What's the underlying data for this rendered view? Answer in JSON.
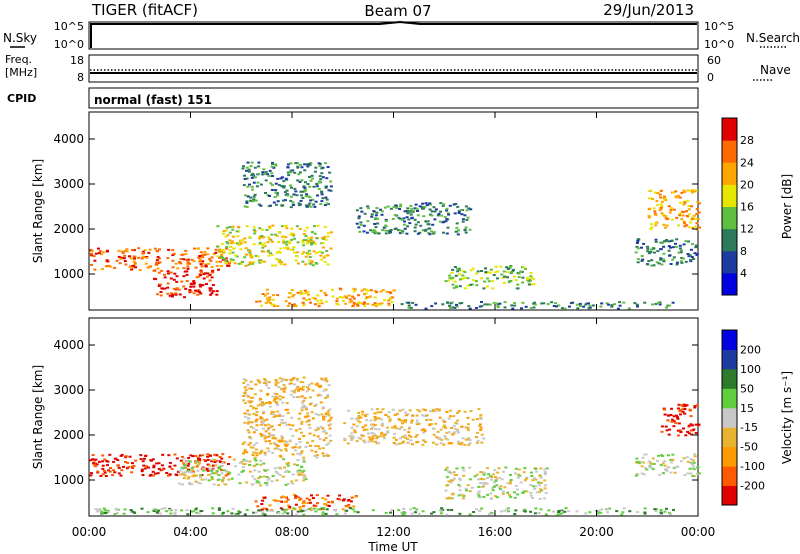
{
  "header": {
    "station": "TIGER (fitACF)",
    "beam": "Beam 07",
    "date": "29/Jun/2013"
  },
  "top_panels": {
    "nsky_label": "N.Sky",
    "nsearch_label": "N.Search",
    "nsky_ticks": [
      "10^5",
      "10^0"
    ],
    "nsearch_ticks": [
      "10^5",
      "10^0"
    ],
    "freq_label_line1": "Freq.",
    "freq_label_line2": "[MHz]",
    "freq_ticks": [
      "18",
      "8"
    ],
    "nave_label": "Nave",
    "nave_ticks": [
      "60",
      "0"
    ],
    "cpid_label": "CPID",
    "cpid_value": "normal (fast) 151"
  },
  "colors": {
    "power_scale": [
      "#0000e0",
      "#1e3ca0",
      "#2d7a5a",
      "#5fbf3f",
      "#e6e600",
      "#ffa500",
      "#ff6a00",
      "#e00000"
    ],
    "velocity_scale": [
      "#e00000",
      "#ff5a00",
      "#ff9a00",
      "#e8b430",
      "#c8c8c8",
      "#5fcf3f",
      "#2d7a2d",
      "#1e3ca0",
      "#0000e0"
    ]
  },
  "chart_data": [
    {
      "type": "heatmap",
      "name": "power",
      "ylabel": "Slant Range [km]",
      "yticks": [
        "1000",
        "2000",
        "3000",
        "4000"
      ],
      "ylim": [
        200,
        4600
      ],
      "xlim": [
        0,
        24
      ],
      "xticks": [
        "00:00",
        "04:00",
        "08:00",
        "12:00",
        "16:00",
        "20:00",
        "00:00"
      ],
      "colorbar_label": "Power [dB]",
      "colorbar_ticks": [
        "28",
        "24",
        "20",
        "16",
        "12",
        "8",
        "4"
      ],
      "regions": [
        {
          "t": [
            0,
            5.5
          ],
          "r": [
            1100,
            1600
          ],
          "level": 6
        },
        {
          "t": [
            2.5,
            5.0
          ],
          "r": [
            500,
            1100
          ],
          "level": 7
        },
        {
          "t": [
            5.0,
            9.5
          ],
          "r": [
            1200,
            2100
          ],
          "level": 4
        },
        {
          "t": [
            6.0,
            9.5
          ],
          "r": [
            2500,
            3500
          ],
          "level": 2
        },
        {
          "t": [
            6.5,
            12
          ],
          "r": [
            300,
            700
          ],
          "level": 5
        },
        {
          "t": [
            10.5,
            15
          ],
          "r": [
            1900,
            2600
          ],
          "level": 2
        },
        {
          "t": [
            14,
            17.5
          ],
          "r": [
            700,
            1200
          ],
          "level": 3
        },
        {
          "t": [
            12,
            23
          ],
          "r": [
            250,
            400
          ],
          "level": 2
        },
        {
          "t": [
            22,
            24
          ],
          "r": [
            2000,
            2900
          ],
          "level": 5
        },
        {
          "t": [
            21.5,
            24
          ],
          "r": [
            1200,
            1800
          ],
          "level": 2
        }
      ]
    },
    {
      "type": "heatmap",
      "name": "velocity",
      "ylabel": "Slant Range [km]",
      "yticks": [
        "1000",
        "2000",
        "3000",
        "4000"
      ],
      "ylim": [
        200,
        4600
      ],
      "xlim": [
        0,
        24
      ],
      "xticks": [
        "00:00",
        "04:00",
        "08:00",
        "12:00",
        "16:00",
        "20:00",
        "00:00"
      ],
      "xlabel": "Time UT",
      "colorbar_label": "Velocity [m s⁻¹]",
      "colorbar_ticks": [
        "200",
        "100",
        "50",
        "15",
        "-15",
        "-50",
        "-100",
        "-200"
      ],
      "regions": [
        {
          "t": [
            0,
            5.5
          ],
          "r": [
            1100,
            1600
          ],
          "level": 0
        },
        {
          "t": [
            3.5,
            8.5
          ],
          "r": [
            900,
            1500
          ],
          "level": 4
        },
        {
          "t": [
            6.5,
            10.5
          ],
          "r": [
            350,
            700
          ],
          "level": 1
        },
        {
          "t": [
            6,
            9.5
          ],
          "r": [
            1500,
            3300
          ],
          "level": 3
        },
        {
          "t": [
            10,
            15.5
          ],
          "r": [
            1800,
            2600
          ],
          "level": 3
        },
        {
          "t": [
            14,
            18
          ],
          "r": [
            600,
            1300
          ],
          "level": 4
        },
        {
          "t": [
            0,
            23
          ],
          "r": [
            250,
            400
          ],
          "level": 5
        },
        {
          "t": [
            22.5,
            24
          ],
          "r": [
            2000,
            2700
          ],
          "level": 0
        },
        {
          "t": [
            21.5,
            24
          ],
          "r": [
            1100,
            1600
          ],
          "level": 4
        }
      ]
    }
  ]
}
